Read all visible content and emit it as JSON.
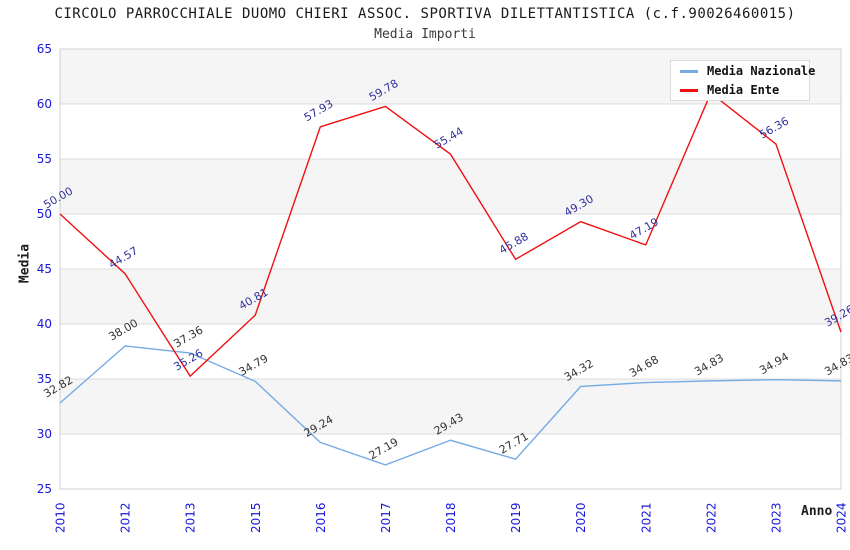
{
  "header": {
    "title": "CIRCOLO PARROCCHIALE DUOMO CHIERI ASSOC. SPORTIVA DILETTANTISTICA (c.f.90026460015)",
    "subtitle": "Media Importi"
  },
  "chart_data": {
    "type": "line",
    "categories": [
      "2010",
      "2012",
      "2013",
      "2015",
      "2016",
      "2017",
      "2018",
      "2019",
      "2020",
      "2021",
      "2022",
      "2023",
      "2024"
    ],
    "series": [
      {
        "name": "Media Nazionale",
        "color": "#76ace4",
        "label_color": "#333333",
        "values": [
          32.82,
          38.0,
          37.36,
          34.79,
          29.24,
          27.19,
          29.43,
          27.71,
          34.32,
          34.68,
          34.83,
          34.94,
          34.83
        ],
        "labels": [
          "32.82",
          "38.00",
          "37.36",
          "34.79",
          "29.24",
          "27.19",
          "29.43",
          "27.71",
          "34.32",
          "34.68",
          "34.83",
          "34.94",
          "34.83"
        ]
      },
      {
        "name": "Media Ente",
        "color": "#f01010",
        "label_color": "#31319c",
        "values": [
          50.0,
          44.57,
          35.26,
          40.81,
          57.93,
          59.78,
          55.44,
          45.88,
          49.3,
          47.19,
          61.0,
          56.36,
          39.26
        ],
        "labels": [
          "50.00",
          "44.57",
          "35.26",
          "40.81",
          "57.93",
          "59.78",
          "55.44",
          "45.88",
          "49.30",
          "47.19",
          null,
          "56.36",
          "39.26"
        ]
      }
    ],
    "xlabel": "Anno",
    "ylabel": "Media",
    "ylim": [
      25,
      65
    ],
    "ytick_step": 5,
    "yticks": [
      25,
      30,
      35,
      40,
      45,
      50,
      55,
      60,
      65
    ],
    "grid": true,
    "legend_position": "top-right"
  },
  "colors": {
    "axis_tick": "#1818d8",
    "band": "#f5f5f5",
    "grid": "#dcdcdc",
    "plot_border": "#d0d0d0"
  }
}
